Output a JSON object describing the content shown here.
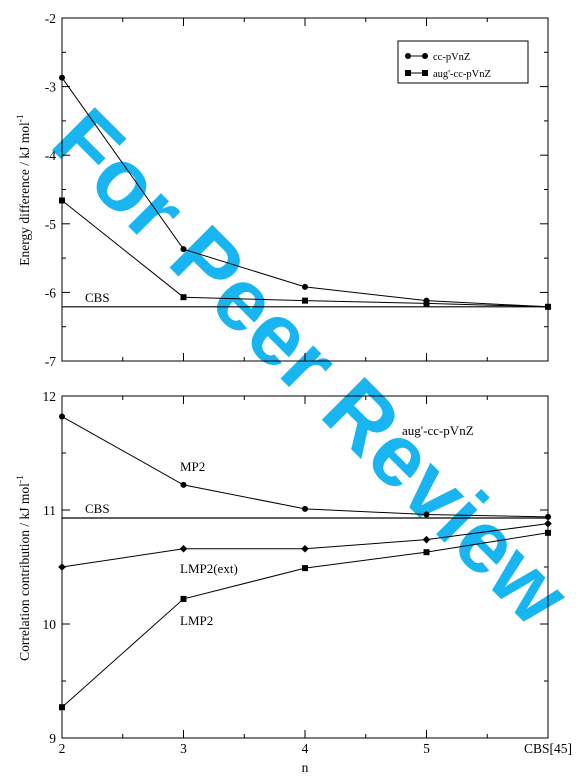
{
  "watermark": {
    "text": "For Peer Review",
    "color": "#00AEEF"
  },
  "chart_data": [
    {
      "type": "line",
      "xlabel": "",
      "ylabel": "Energy difference / kJ mol",
      "ylabel_sup": "-1",
      "ylim": [
        -7,
        -2
      ],
      "yticks": [
        "-7",
        "-6",
        "-5",
        "-4",
        "-3",
        "-2"
      ],
      "x": [
        2,
        3,
        4,
        5,
        6
      ],
      "xlim": [
        2,
        6
      ],
      "grid": false,
      "legend_position": "top-right",
      "series": [
        {
          "name": "cc-pVnZ",
          "marker": "circle",
          "values": [
            -2.87,
            -5.37,
            -5.92,
            -6.12,
            -6.21
          ]
        },
        {
          "name": "aug'-cc-pVnZ",
          "marker": "square",
          "values": [
            -4.66,
            -6.07,
            -6.12,
            -6.16,
            -6.21
          ]
        }
      ],
      "reference": {
        "label": "CBS",
        "value": -6.21
      }
    },
    {
      "type": "line",
      "xlabel": "n",
      "ylabel": "Correlation contribution / kJ mol",
      "ylabel_sup": "-1",
      "ylim": [
        9,
        12
      ],
      "yticks": [
        "9",
        "10",
        "11",
        "12"
      ],
      "x": [
        2,
        3,
        4,
        5,
        6
      ],
      "xlim": [
        2,
        6
      ],
      "xticks": [
        "2",
        "3",
        "4",
        "5",
        "CBS[45]"
      ],
      "grid": false,
      "annotation": "aug'-cc-pVnZ",
      "series": [
        {
          "name": "MP2",
          "marker": "circle",
          "values": [
            11.82,
            11.22,
            11.01,
            10.96,
            10.94
          ]
        },
        {
          "name": "LMP2(ext)",
          "marker": "diamond",
          "values": [
            10.5,
            10.66,
            10.66,
            10.74,
            10.88
          ]
        },
        {
          "name": "LMP2",
          "marker": "square",
          "values": [
            9.27,
            10.22,
            10.49,
            10.63,
            10.8
          ]
        }
      ],
      "reference": {
        "label": "CBS",
        "value": 10.93
      }
    }
  ]
}
